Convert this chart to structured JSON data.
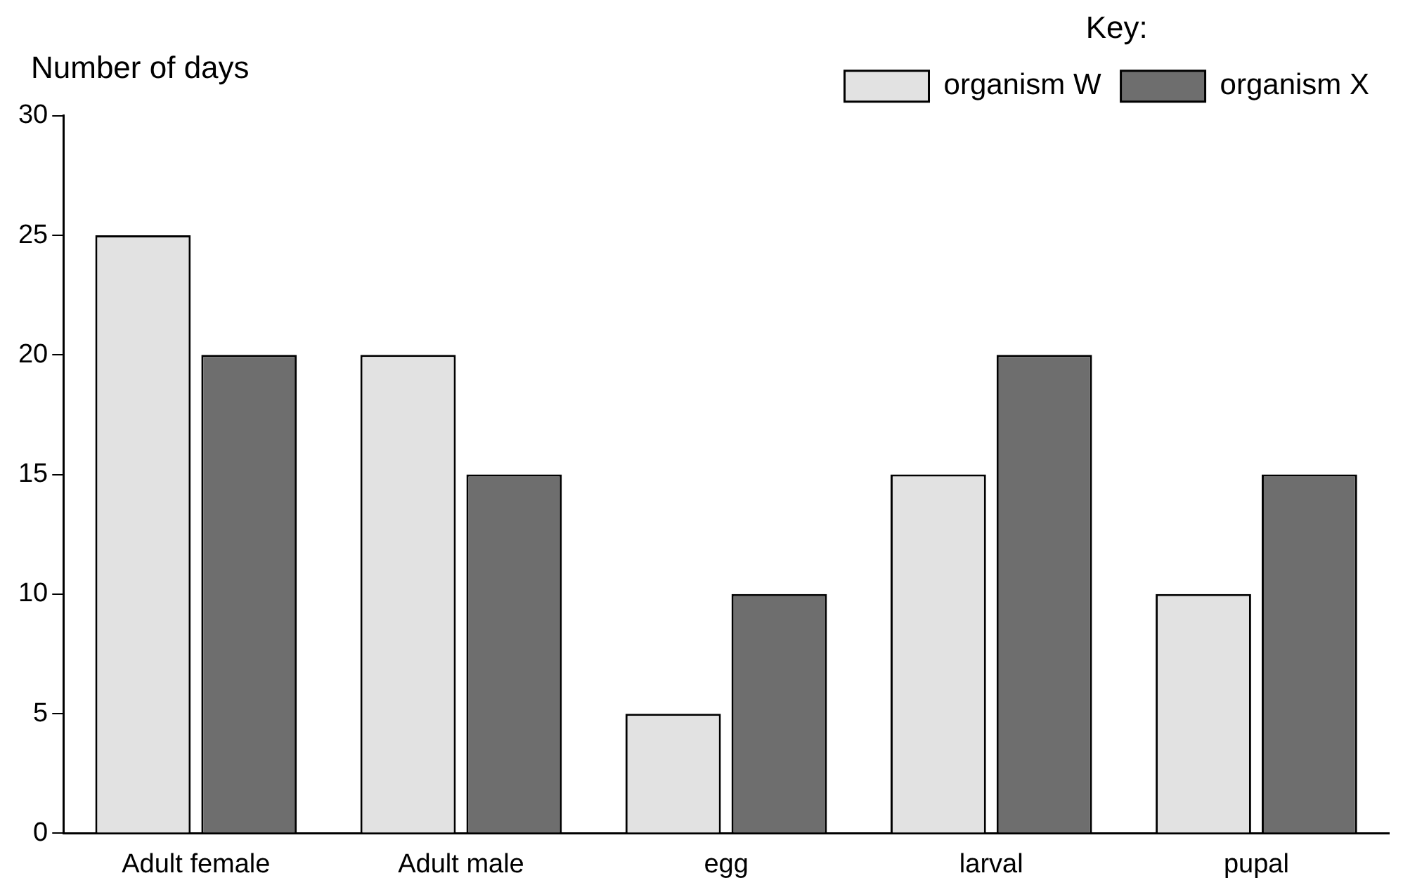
{
  "chart_data": {
    "type": "bar",
    "ylabel": "Number of days",
    "legend_title": "Key:",
    "categories": [
      "Adult female",
      "Adult male",
      "egg",
      "larval",
      "pupal"
    ],
    "series": [
      {
        "name": "organism W",
        "color": "#e2e2e2",
        "values": [
          25,
          20,
          5,
          15,
          10
        ]
      },
      {
        "name": "organism X",
        "color": "#6e6e6e",
        "values": [
          20,
          15,
          10,
          20,
          15
        ]
      }
    ],
    "ylim": [
      0,
      30
    ],
    "yticks": [
      0,
      5,
      10,
      15,
      20,
      25,
      30
    ],
    "grid": false,
    "legend": "top right"
  }
}
